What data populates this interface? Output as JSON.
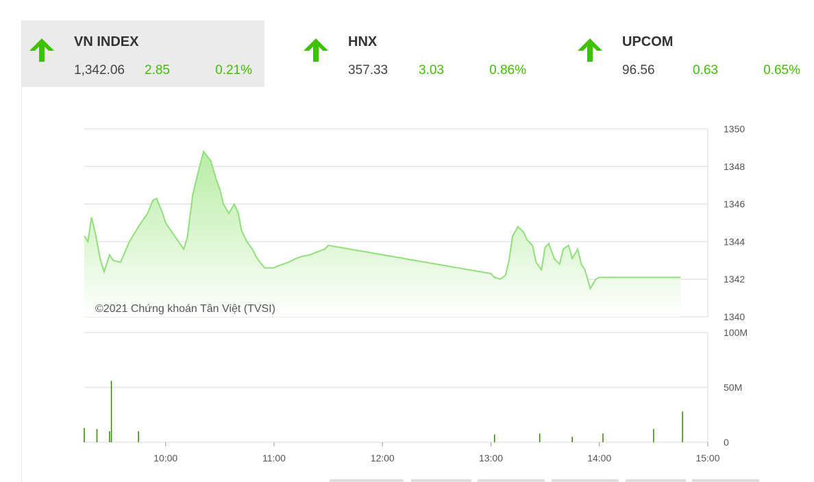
{
  "indices": [
    {
      "name": "VN INDEX",
      "price": "1,342.06",
      "change": "2.85",
      "percent": "0.21%",
      "active": true
    },
    {
      "name": "HNX",
      "price": "357.33",
      "change": "3.03",
      "percent": "0.86%",
      "active": false
    },
    {
      "name": "UPCOM",
      "price": "96.56",
      "change": "0.63",
      "percent": "0.65%",
      "active": false
    }
  ],
  "colors": {
    "up": "#3ec200",
    "line": "#8fe07a",
    "fill_top": "#b5eca0",
    "fill_bottom": "#ffffff",
    "volume": "#2a8a00",
    "grid": "#d9d9d9"
  },
  "chart_data": {
    "type": "area",
    "copyright": "©2021 Chứng khoán Tân Việt (TVSI)",
    "price_axis": {
      "ylim": [
        1340,
        1350
      ],
      "ticks": [
        "1350",
        "1348",
        "1346",
        "1344",
        "1342",
        "1340"
      ]
    },
    "volume_axis": {
      "ylim": [
        0,
        100
      ],
      "ticks": [
        "100M",
        "50M",
        "0"
      ]
    },
    "time_axis": {
      "ticks": [
        "10:00",
        "11:00",
        "12:00",
        "13:00",
        "14:00",
        "15:00"
      ]
    },
    "series": [
      {
        "x": [
          "09:15",
          "09:17",
          "09:19",
          "09:21",
          "09:24",
          "09:26",
          "09:28",
          "09:29",
          "09:31",
          "09:35",
          "09:40",
          "09:45",
          "09:50",
          "09:53",
          "09:55",
          "09:58",
          "10:00",
          "10:05",
          "10:10",
          "10:12",
          "10:15",
          "10:18",
          "10:21",
          "10:25",
          "10:28",
          "10:30",
          "10:32",
          "10:35",
          "10:38",
          "10:40",
          "10:42",
          "10:45",
          "10:48",
          "10:50",
          "10:53",
          "10:55",
          "10:57",
          "11:00",
          "11:02",
          "11:05",
          "11:08",
          "11:10",
          "11:12",
          "11:15",
          "11:20",
          "11:25",
          "11:28",
          "11:30",
          "13:00",
          "13:02",
          "13:05",
          "13:08",
          "13:10",
          "13:12",
          "13:15",
          "13:18",
          "13:20",
          "13:23",
          "13:25",
          "13:28",
          "13:30",
          "13:32",
          "13:35",
          "13:38",
          "13:40",
          "13:43",
          "13:45",
          "13:48",
          "13:50",
          "13:52",
          "13:55",
          "13:58",
          "14:00",
          "14:03",
          "14:05",
          "14:08",
          "14:10",
          "14:12",
          "14:15",
          "14:17",
          "14:20",
          "14:22",
          "14:25",
          "14:30",
          "14:45"
        ],
        "values": [
          1344.3,
          1344.0,
          1345.3,
          1344.5,
          1343.0,
          1342.4,
          1343.0,
          1343.3,
          1343.0,
          1342.9,
          1344.0,
          1344.8,
          1345.5,
          1346.2,
          1346.3,
          1345.6,
          1345.0,
          1344.3,
          1343.6,
          1344.2,
          1346.5,
          1347.7,
          1348.8,
          1348.3,
          1347.3,
          1346.8,
          1346.0,
          1345.5,
          1346.0,
          1345.6,
          1344.6,
          1344.0,
          1343.6,
          1343.2,
          1342.8,
          1342.6,
          1342.6,
          1342.6,
          1342.7,
          1342.8,
          1342.9,
          1343.0,
          1343.1,
          1343.2,
          1343.3,
          1343.5,
          1343.6,
          1343.8,
          1342.3,
          1342.1,
          1342.0,
          1342.2,
          1343.0,
          1344.3,
          1344.8,
          1344.5,
          1344.1,
          1343.8,
          1342.9,
          1342.5,
          1343.7,
          1343.9,
          1343.1,
          1342.8,
          1343.6,
          1343.8,
          1343.1,
          1343.6,
          1342.8,
          1342.5,
          1341.5,
          1342.0,
          1342.1,
          1342.1,
          1342.1,
          1342.1,
          1342.1,
          1342.1,
          1342.1,
          1342.1,
          1342.1,
          1342.1,
          1342.1,
          1342.1,
          1342.1
        ]
      }
    ],
    "volume": {
      "x": [
        "09:15",
        "09:22",
        "09:29",
        "09:30",
        "09:45",
        "13:02",
        "13:27",
        "13:45",
        "14:02",
        "14:30",
        "14:46"
      ],
      "values": [
        13,
        12,
        10,
        56,
        10,
        7,
        8,
        5,
        8,
        12,
        28
      ]
    }
  }
}
